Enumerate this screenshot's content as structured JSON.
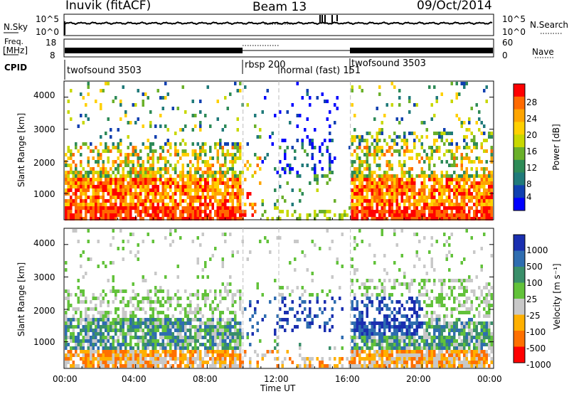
{
  "header": {
    "station": "Inuvik (fitACF)",
    "beam": "Beam 13",
    "date": "09/Oct/2014"
  },
  "noise_panel": {
    "left_label": "N.Sky",
    "left_ticks": [
      "10^5",
      "10^0"
    ],
    "right_label": "N.Search",
    "right_ticks": [
      "10^5",
      "10^0"
    ]
  },
  "freq_panel": {
    "left_label_1": "Freq.",
    "left_label_2": "[MHz]",
    "left_ticks": [
      "18",
      "8"
    ],
    "right_label": "Nave",
    "right_ticks": [
      "60",
      "0"
    ]
  },
  "cpid": {
    "label": "CPID",
    "segments": [
      {
        "name": "twofsound 3503",
        "start_h": 0
      },
      {
        "name": "rbsp 200",
        "start_h": 10
      },
      {
        "name": "normal (fast) 151",
        "start_h": 12
      },
      {
        "name": "twofsound 3503",
        "start_h": 16
      }
    ]
  },
  "chart_data": [
    {
      "type": "heatmap",
      "name": "power",
      "ylabel": "Slant Range [km]",
      "xlabel": "Time UT",
      "xlim_h": [
        0,
        24
      ],
      "ylim": [
        180,
        4500
      ],
      "yticks": [
        "1000",
        "2000",
        "3000",
        "4000"
      ],
      "colorbar_label": "Power [dB]",
      "colorbar_ticks": [
        "28",
        "24",
        "20",
        "16",
        "12",
        "8",
        "4"
      ],
      "colorbar_colors": [
        "#ff0000",
        "#ff6a00",
        "#ffa500",
        "#ffd000",
        "#c8d800",
        "#6ab02a",
        "#2e8b57",
        "#207a7a",
        "#1040b0",
        "#0000ff"
      ]
    },
    {
      "type": "heatmap",
      "name": "velocity",
      "ylabel": "Slant Range [km]",
      "xlabel": "Time UT",
      "xlim_h": [
        0,
        24
      ],
      "ylim": [
        180,
        4500
      ],
      "yticks": [
        "1000",
        "2000",
        "3000",
        "4000"
      ],
      "colorbar_label": "Velocity [m s⁻¹]",
      "colorbar_ticks": [
        "1000",
        "500",
        "100",
        "25",
        "-25",
        "-100",
        "-500",
        "-1000"
      ],
      "colorbar_colors": [
        "#1a2fb0",
        "#2f6db0",
        "#3a8f6a",
        "#62c23a",
        "#c8c8c8",
        "#ffb000",
        "#ff7000",
        "#ff0000"
      ]
    }
  ],
  "xaxis": {
    "ticks": [
      "00:00",
      "04:00",
      "08:00",
      "12:00",
      "16:00",
      "20:00",
      "00:00"
    ],
    "label": "Time UT"
  }
}
